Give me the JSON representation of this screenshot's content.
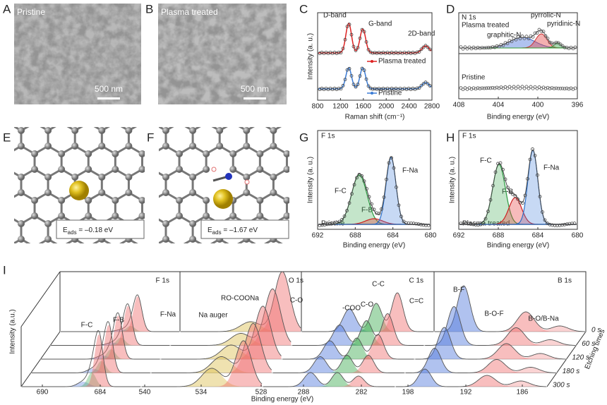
{
  "panel_a": {
    "label": "A",
    "caption": "Pristine",
    "scale_bar": "500 nm"
  },
  "panel_b": {
    "label": "B",
    "caption": "Plasma treated",
    "scale_bar": "500 nm"
  },
  "panel_c": {
    "label": "C",
    "y_label": "Intensity (a. u.)",
    "x_label": "Raman shift (cm⁻¹)",
    "x_ticks": [
      "800",
      "1200",
      "1600",
      "2000",
      "2400",
      "2800"
    ],
    "annotations": [
      "D-band",
      "G-band",
      "2D-band"
    ],
    "legend": [
      "Plasma treated",
      "Pristine"
    ]
  },
  "panel_d": {
    "label": "D",
    "title": "N 1s",
    "top_label": "Plasma treated",
    "bottom_label": "Pristine",
    "peaks": [
      "graphitic-N",
      "pyrrolic-N",
      "pyridinic-N"
    ],
    "x_ticks": [
      "408",
      "404",
      "400",
      "396"
    ],
    "x_label": "Binding energy (eV)"
  },
  "panel_e": {
    "label": "E",
    "energy_symbol": "E",
    "energy_sub": "ads",
    "energy_value": " = –0.18 eV"
  },
  "panel_f": {
    "label": "F",
    "energy_symbol": "E",
    "energy_sub": "ads",
    "energy_value": " = –1.67 eV"
  },
  "panel_g": {
    "label": "G",
    "title": "F 1s",
    "y_label": "Intensity (a. u.)",
    "peaks": [
      "F-C",
      "F-B",
      "F-Na"
    ],
    "sample": "Pristine",
    "x_ticks": [
      "692",
      "688",
      "684",
      "680"
    ],
    "x_label": "Binding energy (eV)"
  },
  "panel_h": {
    "label": "H",
    "title": "F 1s",
    "y_label": "Intensity (a. u.)",
    "peaks": [
      "F-C",
      "F-B",
      "F-Na"
    ],
    "sample": "Plasma treated",
    "x_ticks": [
      "692",
      "688",
      "684",
      "680"
    ],
    "x_label": "Binding energy (eV)"
  },
  "panel_i": {
    "label": "I",
    "y_label": "Intensity (a.u.)",
    "x_label": "Binding energy (eV)",
    "sections": [
      "F 1s",
      "O 1s",
      "C 1s",
      "B 1s"
    ],
    "peaks": [
      "F-C",
      "F-B",
      "F-Na",
      "Na auger",
      "RO-COONa",
      "C-O",
      "-COO",
      "C-O",
      "C-C",
      "C=C",
      "B-F",
      "B-O-F",
      "B-O/B-Na"
    ],
    "x_ticks": [
      "690",
      "684",
      "540",
      "534",
      "528",
      "288",
      "282",
      "198",
      "192",
      "186"
    ],
    "times": [
      "0 s",
      "60 s",
      "120 s",
      "180 s",
      "300 s"
    ],
    "time_axis": "Etching times"
  }
}
